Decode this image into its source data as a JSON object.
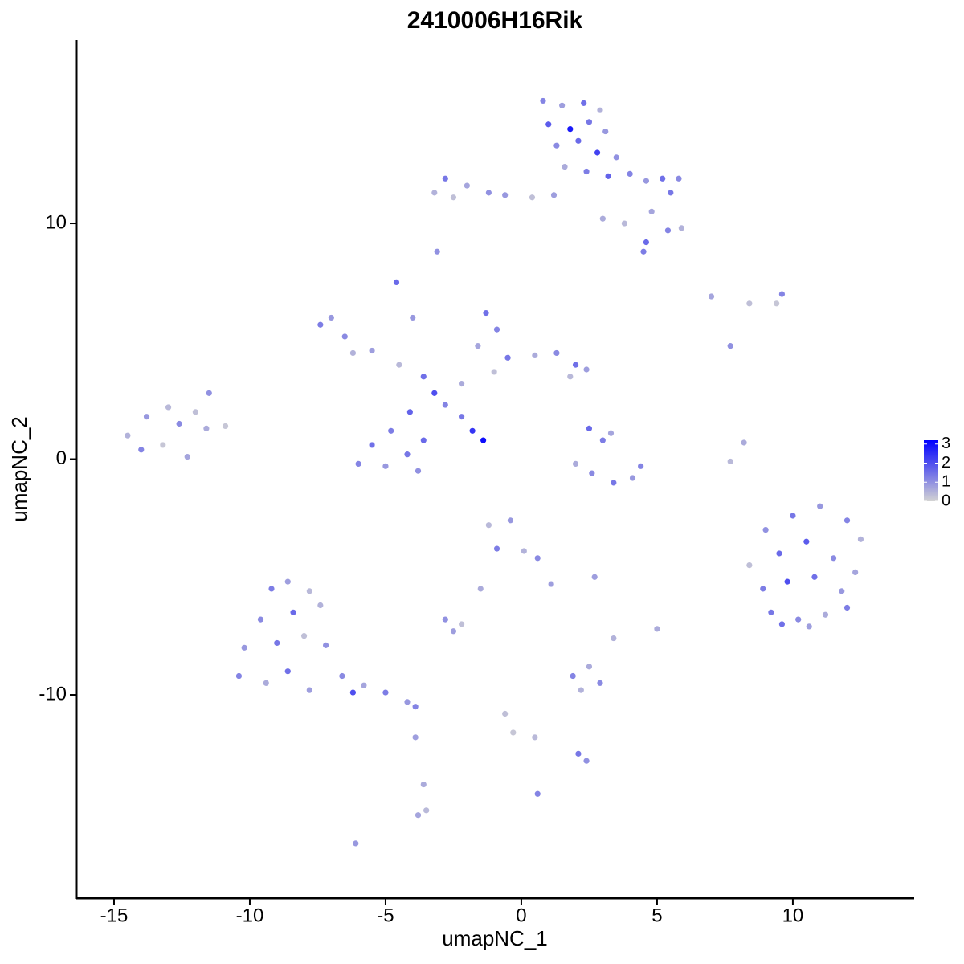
{
  "chart_data": {
    "type": "scatter",
    "title": "2410006H16Rik",
    "x_label": "umapNC_1",
    "y_label": "umapNC_2",
    "xlim": [
      -16.39,
      14.47
    ],
    "ylim": [
      -18.62,
      17.77
    ],
    "xticks": [
      -15,
      -10,
      -5,
      0,
      5,
      10
    ],
    "yticks": [
      -10,
      0,
      10
    ],
    "color_low": "#d3d3d3",
    "color_high": "#0000ff",
    "color_lim": [
      0,
      3.2
    ],
    "color_ticks": [
      0,
      1,
      2,
      3
    ],
    "x": [
      0.8,
      1.5,
      2.3,
      2.9,
      1.0,
      1.8,
      2.5,
      3.1,
      1.3,
      2.1,
      2.8,
      3.5,
      1.6,
      2.4,
      3.2,
      4.0,
      4.6,
      5.2,
      5.8,
      5.5,
      4.8,
      5.4,
      5.9,
      4.6,
      4.5,
      3.8,
      3.0,
      1.2,
      0.4,
      -0.6,
      -1.2,
      -2.0,
      -2.8,
      -3.2,
      -2.5,
      -3.1,
      -3.2,
      -3.6,
      -2.8,
      -2.2,
      -4.5,
      -5.5,
      -6.5,
      -7.4,
      -7.0,
      -6.2,
      -4.6,
      -4.0,
      -1.3,
      -0.9,
      -1.6,
      -0.5,
      0.5,
      1.3,
      2.0,
      2.4,
      1.8,
      -1.0,
      -4.1,
      -4.8,
      -5.5,
      -6.0,
      -5.0,
      -4.2,
      -3.6,
      -3.8,
      -2.2,
      -1.4,
      -1.8,
      -14.5,
      -13.8,
      -13.2,
      -12.6,
      -12.0,
      -11.6,
      -11.5,
      -13.0,
      -12.3,
      -14.0,
      -10.9,
      -9.2,
      -8.6,
      -7.8,
      -9.6,
      -8.4,
      -7.4,
      -10.2,
      -9.0,
      -8.0,
      -7.2,
      -10.4,
      -9.4,
      -8.6,
      -7.8,
      -6.6,
      -5.8,
      -5.0,
      -4.2,
      -3.9,
      -6.2,
      -3.9,
      -3.6,
      -3.5,
      -3.8,
      -6.1,
      9.0,
      10.0,
      11.0,
      12.0,
      12.5,
      8.4,
      9.5,
      10.5,
      11.5,
      12.3,
      8.9,
      9.8,
      10.8,
      11.8,
      9.2,
      10.2,
      11.2,
      12.0,
      9.6,
      10.6,
      2.0,
      2.6,
      3.4,
      4.1,
      4.4,
      3.0,
      3.3,
      2.5,
      -1.2,
      -0.4,
      -0.9,
      0.1,
      0.6,
      1.1,
      -1.5,
      -2.8,
      -2.2,
      -2.5,
      1.9,
      2.5,
      2.9,
      2.2,
      -0.6,
      -0.3,
      0.5,
      2.1,
      2.4,
      0.6,
      5.0,
      3.4,
      2.7,
      7.7,
      8.2,
      7.7,
      7.0,
      9.6,
      8.4,
      9.4
    ],
    "y": [
      15.2,
      15.0,
      15.1,
      14.8,
      14.2,
      14.0,
      14.3,
      13.9,
      13.3,
      13.5,
      13.0,
      12.8,
      12.4,
      12.2,
      12.0,
      12.1,
      11.8,
      11.9,
      11.9,
      11.3,
      10.5,
      9.7,
      9.8,
      9.2,
      8.8,
      10.0,
      10.2,
      11.2,
      11.1,
      11.2,
      11.3,
      11.6,
      11.9,
      11.3,
      11.1,
      8.8,
      2.8,
      3.5,
      2.3,
      3.2,
      4.0,
      4.6,
      5.2,
      5.7,
      6.0,
      4.5,
      7.5,
      6.0,
      6.2,
      5.5,
      4.8,
      4.3,
      4.4,
      4.5,
      4.0,
      3.8,
      3.5,
      3.7,
      2.0,
      1.2,
      0.6,
      -0.2,
      -0.3,
      0.2,
      0.8,
      -0.5,
      1.8,
      0.8,
      1.2,
      1.0,
      1.8,
      0.6,
      1.5,
      2.0,
      1.3,
      2.8,
      2.2,
      0.1,
      0.4,
      1.4,
      -5.5,
      -5.2,
      -5.6,
      -6.8,
      -6.5,
      -6.2,
      -8.0,
      -7.8,
      -7.5,
      -7.9,
      -9.2,
      -9.5,
      -9.0,
      -9.8,
      -9.2,
      -9.6,
      -9.9,
      -10.3,
      -10.5,
      -9.9,
      -11.8,
      -13.8,
      -14.9,
      -15.1,
      -16.3,
      -3.0,
      -2.4,
      -2.0,
      -2.6,
      -3.4,
      -4.5,
      -4.0,
      -3.5,
      -4.2,
      -4.8,
      -5.5,
      -5.2,
      -5.0,
      -5.6,
      -6.5,
      -6.8,
      -6.6,
      -6.3,
      -7.0,
      -7.1,
      -0.2,
      -0.6,
      -1.0,
      -0.8,
      -0.3,
      0.8,
      1.1,
      1.3,
      -2.8,
      -2.6,
      -3.8,
      -3.9,
      -4.2,
      -5.3,
      -5.5,
      -6.8,
      -7.0,
      -7.3,
      -9.2,
      -8.8,
      -9.5,
      -9.8,
      -10.8,
      -11.6,
      -11.8,
      -12.5,
      -12.8,
      -14.2,
      -7.2,
      -7.6,
      -5.0,
      -0.1,
      0.7,
      4.8,
      6.9,
      7.0,
      6.6,
      6.6
    ],
    "expression": [
      1.2,
      0.8,
      1.5,
      0.5,
      1.8,
      2.8,
      1.4,
      0.9,
      1.1,
      1.6,
      2.2,
      1.0,
      0.6,
      1.3,
      1.7,
      1.2,
      0.9,
      1.5,
      1.1,
      1.4,
      0.7,
      1.2,
      0.5,
      1.6,
      1.3,
      0.4,
      0.6,
      0.8,
      0.3,
      0.9,
      1.0,
      0.7,
      1.4,
      0.5,
      0.3,
      1.0,
      2.0,
      1.5,
      1.2,
      0.6,
      0.4,
      0.8,
      1.1,
      1.3,
      0.9,
      0.5,
      1.6,
      0.9,
      1.5,
      1.2,
      0.7,
      1.4,
      0.6,
      1.1,
      1.5,
      0.8,
      0.4,
      0.3,
      1.7,
      1.3,
      1.5,
      1.2,
      0.9,
      1.4,
      1.6,
      1.0,
      1.4,
      3.0,
      2.4,
      0.5,
      0.9,
      0.2,
      1.1,
      0.3,
      0.6,
      1.0,
      0.4,
      0.7,
      1.2,
      0.2,
      1.3,
      0.8,
      0.4,
      1.1,
      1.6,
      0.5,
      0.9,
      1.4,
      0.3,
      1.0,
      1.2,
      0.6,
      1.5,
      0.8,
      1.1,
      0.7,
      1.3,
      0.9,
      1.2,
      2.0,
      0.8,
      0.6,
      0.4,
      0.7,
      0.9,
      1.0,
      1.4,
      0.9,
      1.2,
      0.5,
      0.3,
      1.6,
      1.8,
      1.1,
      0.7,
      1.3,
      2.0,
      1.5,
      0.9,
      1.4,
      1.1,
      0.6,
      1.3,
      1.5,
      0.8,
      0.6,
      1.1,
      1.4,
      0.9,
      1.2,
      1.3,
      0.7,
      1.6,
      0.4,
      0.9,
      1.3,
      0.5,
      1.1,
      0.8,
      0.6,
      1.0,
      0.3,
      0.8,
      1.2,
      0.6,
      1.1,
      0.5,
      0.3,
      0.2,
      0.4,
      1.4,
      1.0,
      1.2,
      0.6,
      0.5,
      0.8,
      0.4,
      0.6,
      1.0,
      0.7,
      1.2,
      0.3,
      0.2
    ]
  }
}
